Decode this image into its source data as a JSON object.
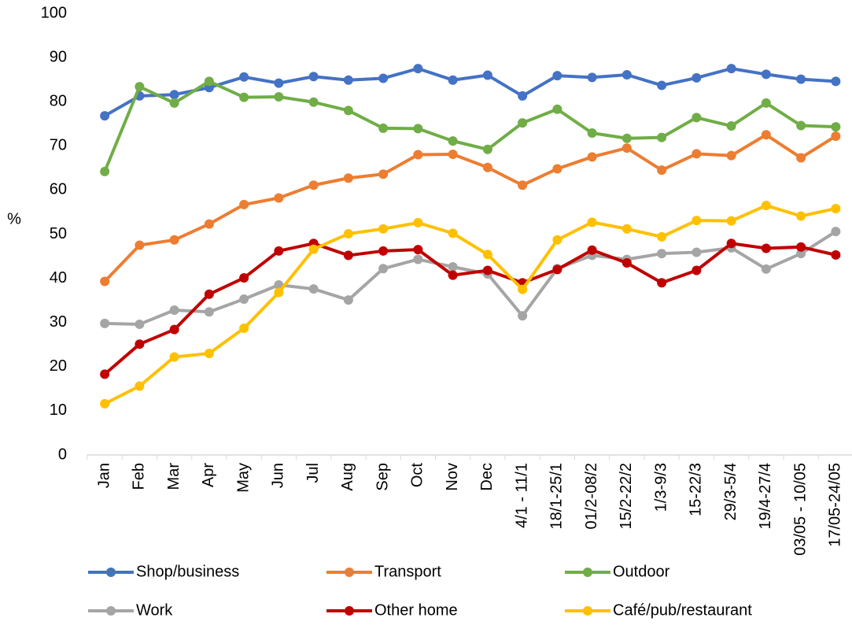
{
  "chart_data": {
    "type": "line",
    "y_label": "%",
    "categories": [
      "Jan",
      "Feb",
      "Mar",
      "Apr",
      "May",
      "Jun",
      "Jul",
      "Aug",
      "Sep",
      "Oct",
      "Nov",
      "Dec",
      "4/1 - 11/1",
      "18/1-25/1",
      "01/2-08/2",
      "15/2-22/2",
      "1/3-9/3",
      "15-22/3",
      "29/3-5/4",
      "19/4-27/4",
      "03/05 - 10/05",
      "17/05-24/05"
    ],
    "series": [
      {
        "name": "Shop/business",
        "color": "#4472c4",
        "values": [
          76.8,
          81.3,
          81.6,
          83.2,
          85.6,
          84.2,
          85.7,
          84.9,
          85.3,
          87.5,
          84.9,
          86.0,
          81.3,
          85.9,
          85.5,
          86.1,
          83.7,
          85.4,
          87.5,
          86.2,
          85.1,
          84.6
        ]
      },
      {
        "name": "Transport",
        "color": "#ed7d31",
        "values": [
          39.3,
          47.5,
          48.7,
          52.3,
          56.7,
          58.2,
          61.1,
          62.7,
          63.6,
          68.0,
          68.1,
          65.1,
          61.1,
          64.8,
          67.5,
          69.5,
          64.5,
          68.2,
          67.8,
          72.5,
          67.3,
          72.2
        ]
      },
      {
        "name": "Outdoor",
        "color": "#70ad47",
        "values": [
          64.2,
          83.4,
          79.7,
          84.6,
          81.0,
          81.1,
          79.9,
          78.0,
          74.0,
          73.9,
          71.1,
          69.2,
          75.2,
          78.3,
          72.9,
          71.7,
          71.9,
          76.4,
          74.5,
          79.7,
          74.6,
          74.3
        ]
      },
      {
        "name": "Work",
        "color": "#a5a5a5",
        "values": [
          29.8,
          29.6,
          32.8,
          32.4,
          35.3,
          38.5,
          37.6,
          35.1,
          42.2,
          44.3,
          42.6,
          41.0,
          31.5,
          42.2,
          45.2,
          44.3,
          45.6,
          45.9,
          46.9,
          42.1,
          45.6,
          50.6
        ]
      },
      {
        "name": "Other home",
        "color": "#c00000",
        "values": [
          18.3,
          25.1,
          28.4,
          36.4,
          40.1,
          46.2,
          47.9,
          45.2,
          46.2,
          46.5,
          40.7,
          41.8,
          39.0,
          42.0,
          46.4,
          43.5,
          39.0,
          41.8,
          47.9,
          46.8,
          47.1,
          45.3
        ]
      },
      {
        "name": "Café/pub/restaurant",
        "color": "#ffc000",
        "values": [
          11.6,
          15.6,
          22.2,
          23.0,
          28.7,
          36.8,
          46.6,
          50.1,
          51.2,
          52.6,
          50.2,
          45.4,
          37.5,
          48.7,
          52.7,
          51.2,
          49.4,
          53.1,
          53.0,
          56.5,
          54.1,
          55.8
        ]
      }
    ],
    "ylim": [
      0,
      100
    ],
    "yticks": [
      0,
      10,
      20,
      30,
      40,
      50,
      60,
      70,
      80,
      90,
      100
    ],
    "grid": false,
    "legend": "bottom"
  }
}
